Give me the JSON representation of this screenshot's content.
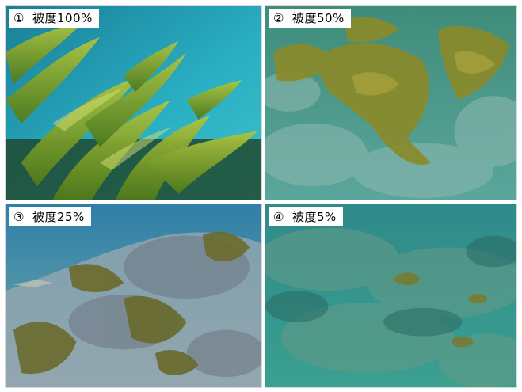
{
  "panels": [
    {
      "number": "①",
      "caption": "被度100%",
      "coverage_percent": 100,
      "palette": {
        "water": "#2a9fb0",
        "kelp": "#7fa52a",
        "rock": "#2f5a3a"
      }
    },
    {
      "number": "②",
      "caption": "被度50%",
      "coverage_percent": 50,
      "palette": {
        "water": "#4f9a8e",
        "kelp": "#8a8a2a",
        "rock": "#6f9a92"
      }
    },
    {
      "number": "③",
      "caption": "被度25%",
      "coverage_percent": 25,
      "palette": {
        "water": "#3a84a0",
        "kelp": "#6a6a2c",
        "rock": "#8aa0a8"
      }
    },
    {
      "number": "④",
      "caption": "被度5%",
      "coverage_percent": 5,
      "palette": {
        "water": "#3a9a92",
        "kelp": "#7a7a30",
        "rock": "#4f8a80"
      }
    }
  ]
}
